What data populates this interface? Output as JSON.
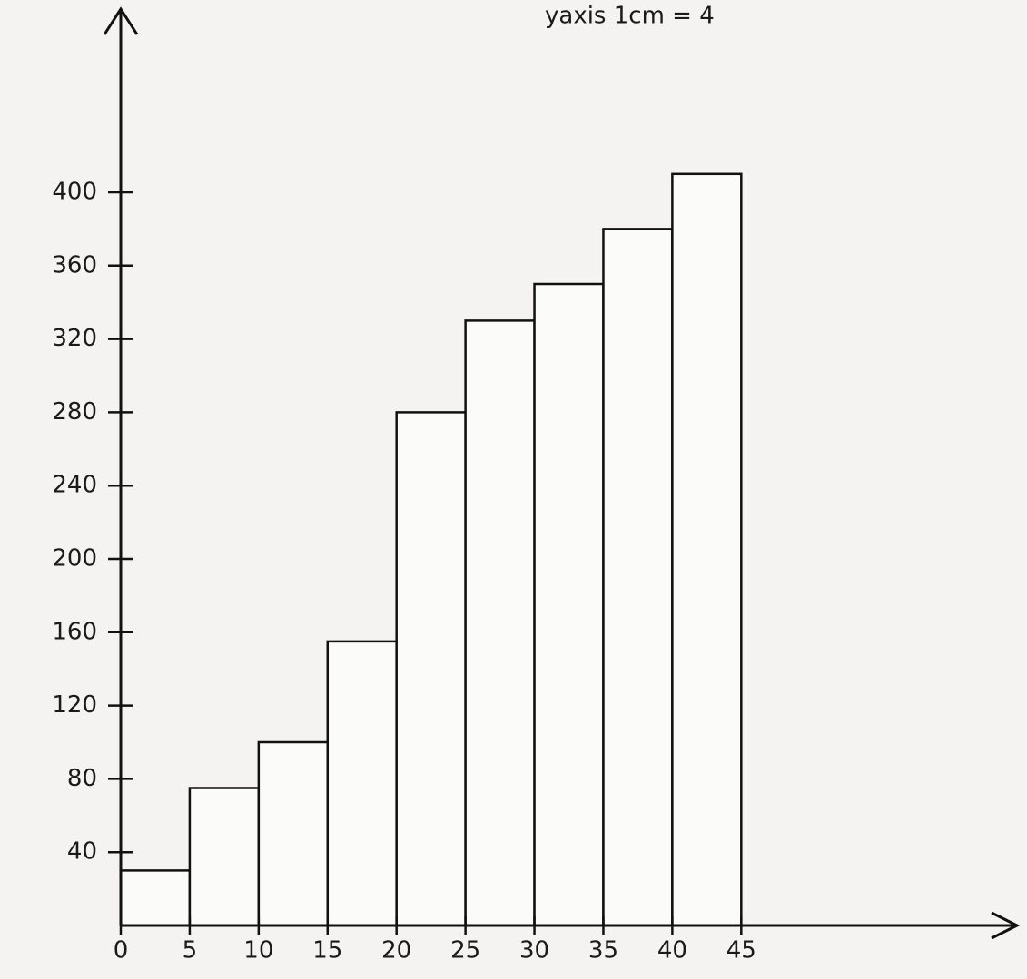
{
  "chart_data": {
    "type": "histogram",
    "annotation": "yaxis 1cm = 4",
    "bins": [
      0,
      5,
      10,
      15,
      20,
      25,
      30,
      35,
      40,
      45
    ],
    "counts": [
      30,
      75,
      100,
      155,
      280,
      330,
      350,
      380,
      410
    ],
    "xlim": [
      0,
      65
    ],
    "ylim": [
      0,
      500
    ],
    "xticks": [
      0,
      5,
      10,
      15,
      20,
      25,
      30,
      35,
      40,
      45
    ],
    "yticks": [
      40,
      80,
      120,
      160,
      200,
      240,
      280,
      320,
      360,
      400
    ],
    "grid": false
  }
}
